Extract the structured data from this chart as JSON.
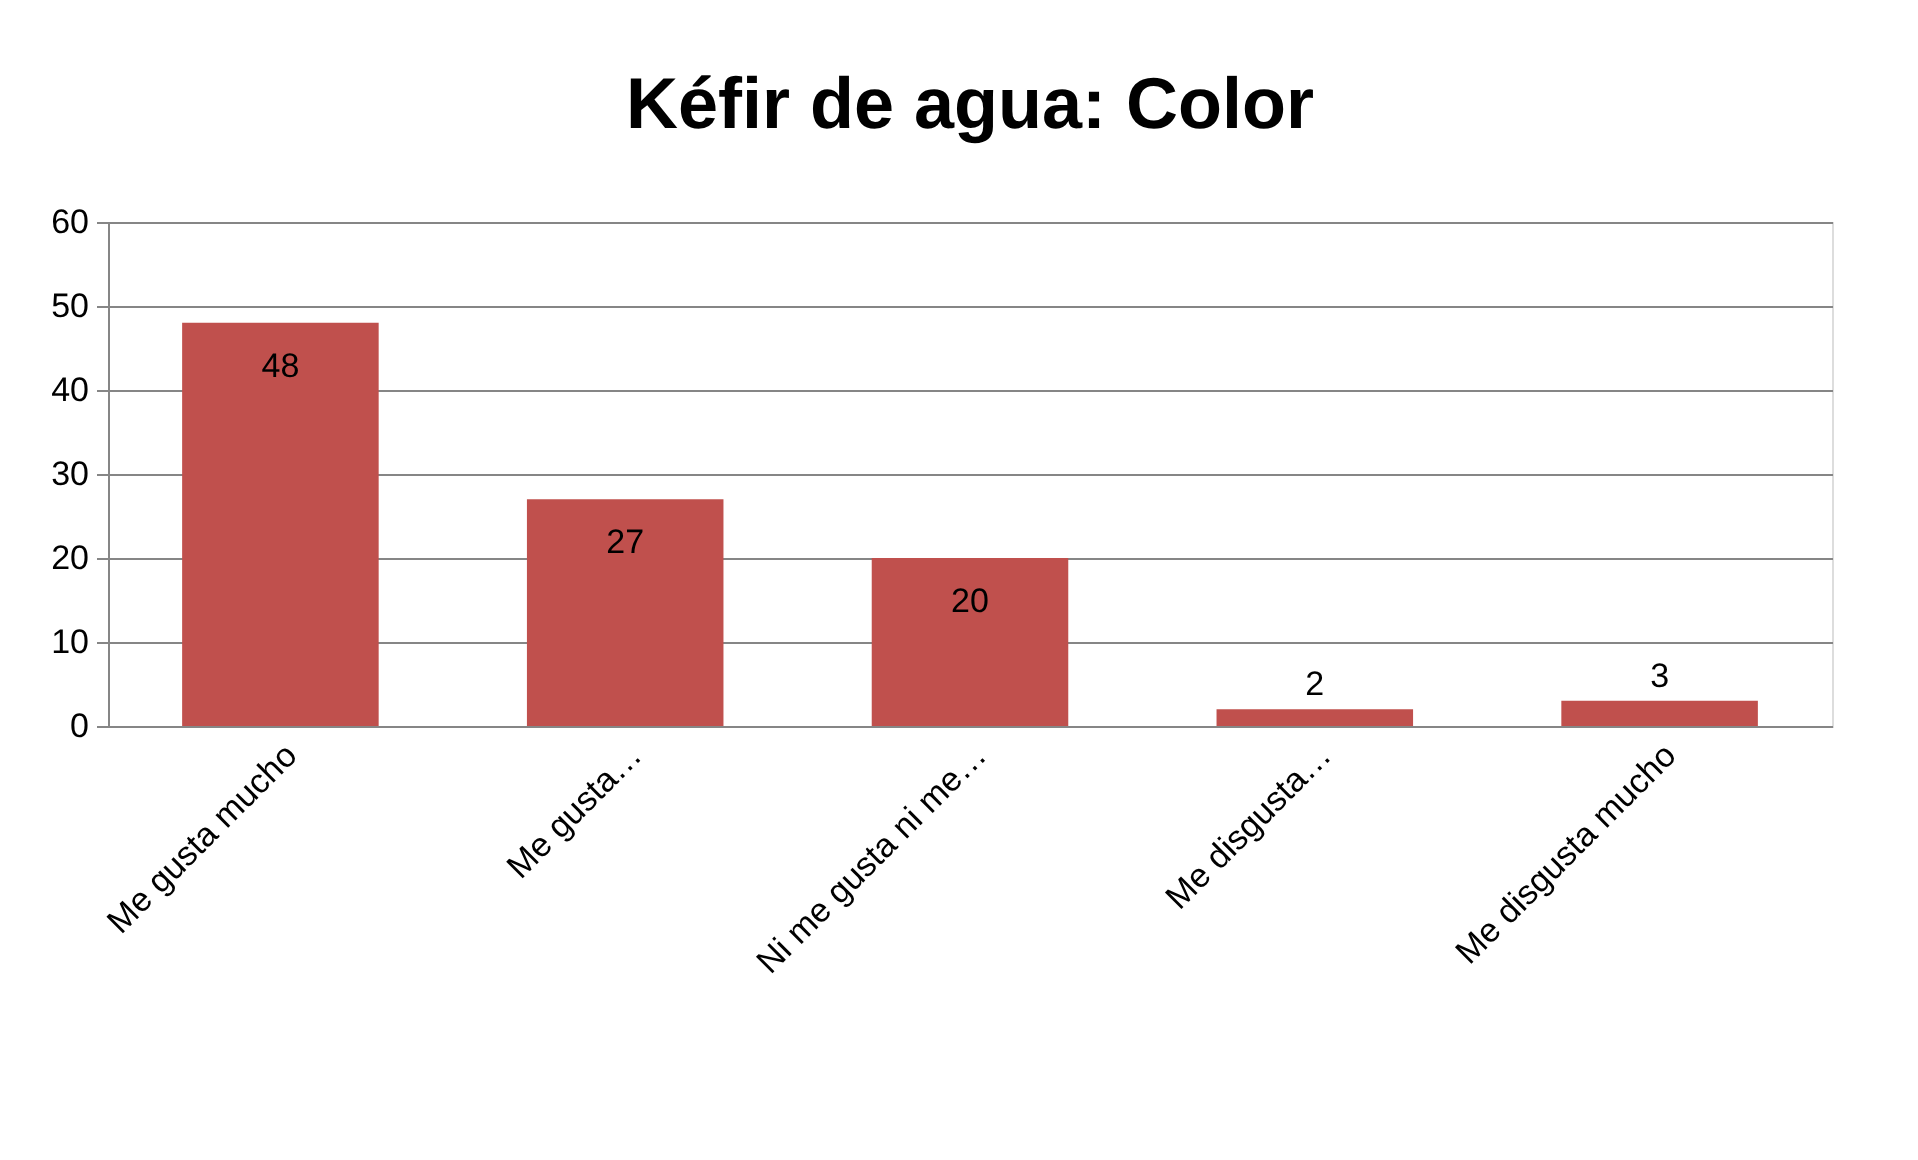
{
  "chart_data": {
    "type": "bar",
    "title": "Kéfir de agua: Color",
    "categories": [
      "Me gusta mucho",
      "Me gusta…",
      "Ni me gusta ni me…",
      "Me disgusta…",
      "Me disgusta mucho"
    ],
    "values": [
      48,
      27,
      20,
      2,
      3
    ],
    "color": "#c0504d",
    "ylim": [
      0,
      60
    ],
    "yticks": [
      0,
      10,
      20,
      30,
      40,
      50,
      60
    ],
    "grid": "y",
    "data_labels": true
  }
}
